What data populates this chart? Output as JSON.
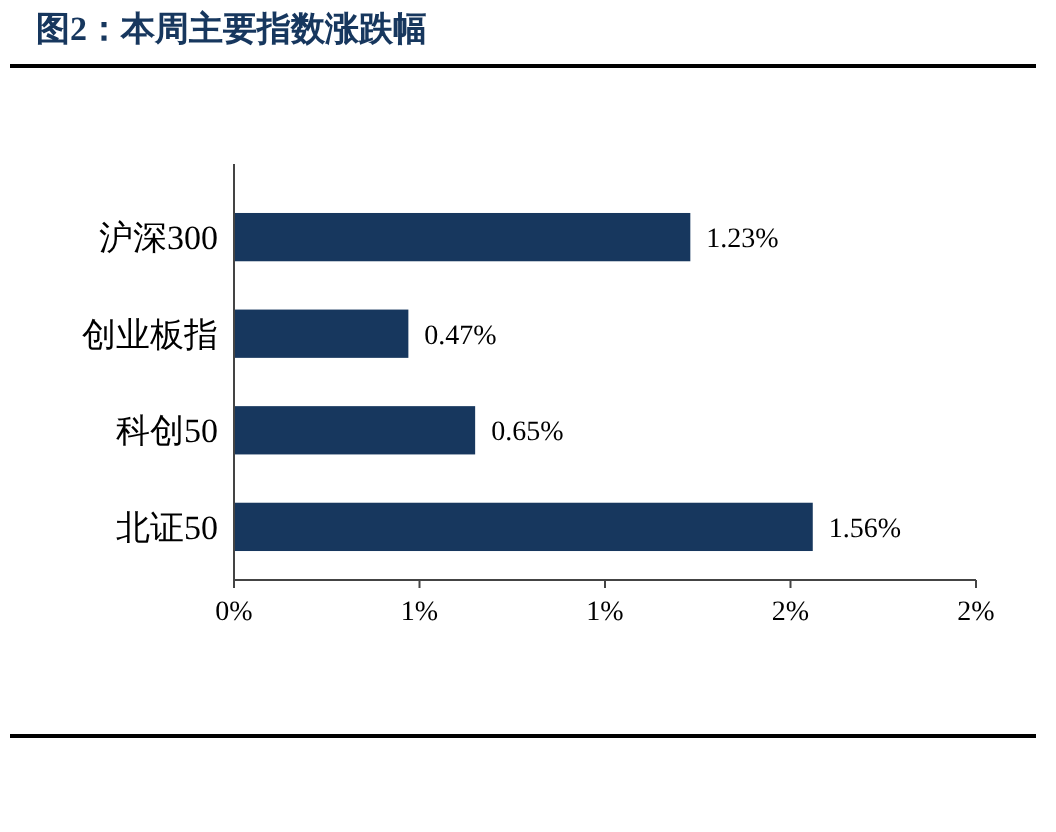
{
  "chart_data": {
    "type": "bar",
    "orientation": "horizontal",
    "title": "图2：本周主要指数涨跌幅",
    "categories": [
      "沪深300",
      "创业板指",
      "科创50",
      "北证50"
    ],
    "values": [
      1.23,
      0.47,
      0.65,
      1.56
    ],
    "value_labels": [
      "1.23%",
      "0.47%",
      "0.65%",
      "1.56%"
    ],
    "color": "#17375e",
    "xlim": [
      0,
      2
    ],
    "xticks": [
      {
        "value": 0,
        "label": "0%"
      },
      {
        "value": 0.5,
        "label": "1%"
      },
      {
        "value": 1,
        "label": "1%"
      },
      {
        "value": 1.5,
        "label": "2%"
      },
      {
        "value": 2,
        "label": "2%"
      }
    ],
    "grid": false
  }
}
